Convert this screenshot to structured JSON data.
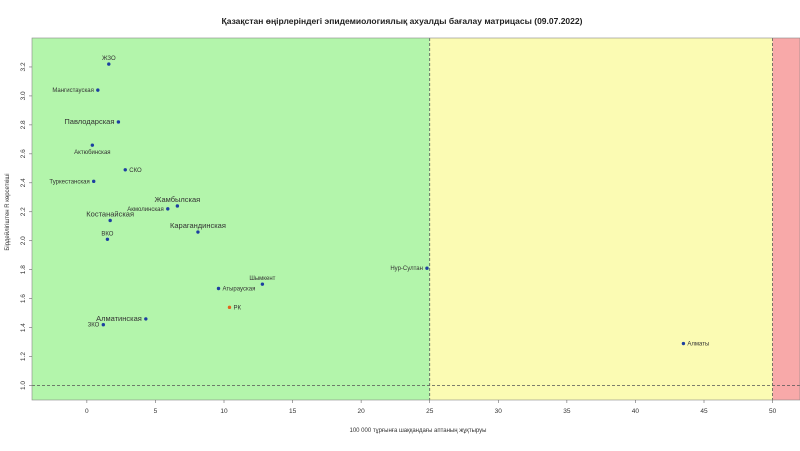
{
  "chart_data": {
    "type": "scatter",
    "title": "Қазақстан өңірлеріндегі эпидемиологиялық ахуалды бағалау матрицасы  (09.07.2022)",
    "xlabel": "100 000 тұрғынға шаққандағы аптаның жұқтыруы",
    "ylabel": "Бірдейлігіштен R көрсеткіші",
    "xlim": [
      -4,
      52
    ],
    "ylim": [
      0.9,
      3.4
    ],
    "x_ticks": [
      0,
      5,
      10,
      15,
      20,
      25,
      30,
      35,
      40,
      45,
      50
    ],
    "y_ticks": [
      1.0,
      1.2,
      1.4,
      1.6,
      1.8,
      2.0,
      2.2,
      2.4,
      2.6,
      2.8,
      3.0,
      3.2
    ],
    "zones": [
      {
        "from": -4,
        "to": 25,
        "color": "#b3f5ab"
      },
      {
        "from": 25,
        "to": 50,
        "color": "#fbfbb3"
      },
      {
        "from": 50,
        "to": 52,
        "color": "#f8a9a9"
      }
    ],
    "threshold_lines": {
      "x": [
        25,
        50
      ],
      "y": 1.0
    },
    "points": [
      {
        "label": "ЖЗО",
        "x": 1.6,
        "y": 3.22,
        "color": "#1c3fa0",
        "label_pos": "above",
        "big": false
      },
      {
        "label": "Мангистауская",
        "x": 0.8,
        "y": 3.04,
        "color": "#1c3fa0",
        "label_pos": "left",
        "big": false
      },
      {
        "label": "Павлодарская",
        "x": 2.3,
        "y": 2.82,
        "color": "#1c3fa0",
        "label_pos": "left",
        "big": true
      },
      {
        "label": "Актюбинская",
        "x": 0.4,
        "y": 2.66,
        "color": "#1c3fa0",
        "label_pos": "below",
        "big": false
      },
      {
        "label": "СКО",
        "x": 2.8,
        "y": 2.49,
        "color": "#1c3fa0",
        "label_pos": "right",
        "big": false
      },
      {
        "label": "Туркестанская",
        "x": 0.5,
        "y": 2.41,
        "color": "#1c3fa0",
        "label_pos": "left",
        "big": false
      },
      {
        "label": "Жамбылская",
        "x": 6.6,
        "y": 2.24,
        "color": "#1c3fa0",
        "label_pos": "above",
        "big": true
      },
      {
        "label": "Акмолинская",
        "x": 5.9,
        "y": 2.22,
        "color": "#1c3fa0",
        "label_pos": "left",
        "big": false
      },
      {
        "label": "Костанайская",
        "x": 1.7,
        "y": 2.14,
        "color": "#1c3fa0",
        "label_pos": "above",
        "big": true
      },
      {
        "label": "Карагандинская",
        "x": 8.1,
        "y": 2.06,
        "color": "#1c3fa0",
        "label_pos": "above",
        "big": true
      },
      {
        "label": "ВКО",
        "x": 1.5,
        "y": 2.01,
        "color": "#1c3fa0",
        "label_pos": "above",
        "big": false
      },
      {
        "label": "Нур-Султан",
        "x": 24.8,
        "y": 1.81,
        "color": "#1c3fa0",
        "label_pos": "left",
        "big": false
      },
      {
        "label": "Шымкент",
        "x": 12.8,
        "y": 1.7,
        "color": "#1c3fa0",
        "label_pos": "above",
        "big": false
      },
      {
        "label": "Атырауская",
        "x": 9.6,
        "y": 1.67,
        "color": "#1c3fa0",
        "label_pos": "right",
        "big": false
      },
      {
        "label": "РК",
        "x": 10.4,
        "y": 1.54,
        "color": "#e2641e",
        "label_pos": "right",
        "big": false
      },
      {
        "label": "Алматинская",
        "x": 4.3,
        "y": 1.46,
        "color": "#1c3fa0",
        "label_pos": "left",
        "big": true
      },
      {
        "label": "ЗКО",
        "x": 1.2,
        "y": 1.42,
        "color": "#1c3fa0",
        "label_pos": "left",
        "big": false
      },
      {
        "label": "Алматы",
        "x": 43.5,
        "y": 1.29,
        "color": "#1c3fa0",
        "label_pos": "right",
        "big": false
      }
    ]
  }
}
